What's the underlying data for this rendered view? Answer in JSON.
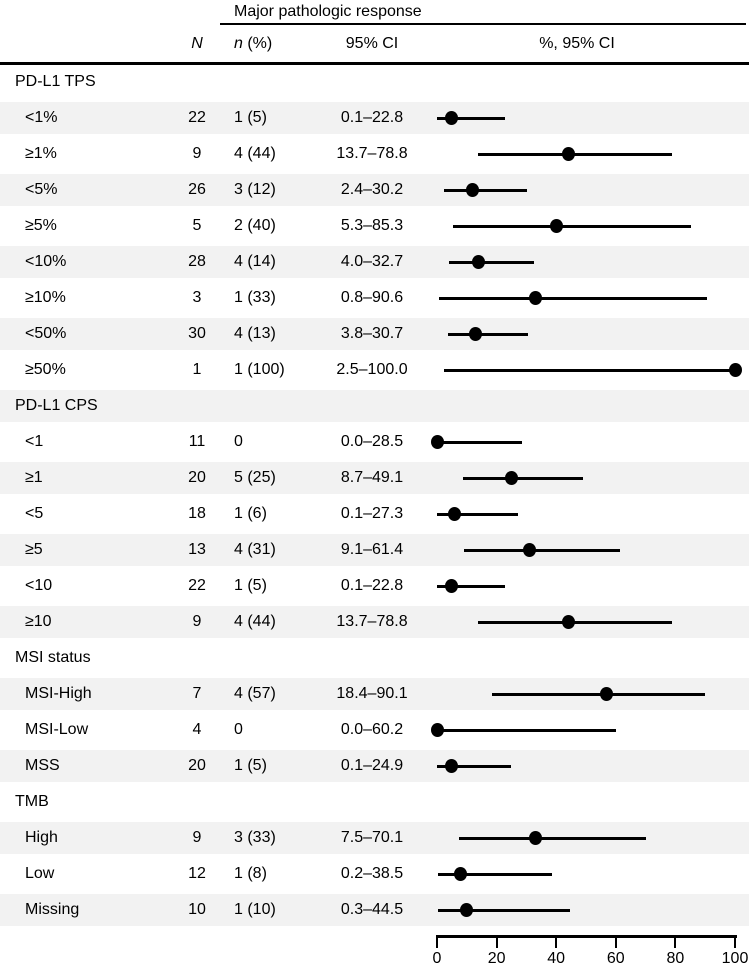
{
  "header": {
    "group": "Major pathologic response",
    "col_n": "N",
    "col_n_pct_italic": "n",
    "col_n_pct_rest": " (%)",
    "col_ci": "95% CI",
    "col_plot": "%, 95% CI"
  },
  "colors": {
    "row_shade": "#f2f2f2",
    "ink": "#000000"
  },
  "chart_data": {
    "type": "scatter",
    "variant": "forest-plot",
    "title": "Major pathologic response",
    "xlabel": "%, 95% CI",
    "xlim": [
      0,
      100
    ],
    "x_ticks": [
      0,
      20,
      40,
      60,
      80,
      100
    ],
    "grid": false,
    "columns": [
      "N",
      "n (%)",
      "95% CI",
      "%, 95% CI"
    ],
    "sections": [
      {
        "label": "PD-L1 TPS",
        "rows": [
          {
            "label": "<1%",
            "N": "22",
            "n_pct": "1 (5)",
            "ci_text": "0.1–22.8",
            "estimate": 5,
            "ci_low": 0.1,
            "ci_high": 22.8
          },
          {
            "label": "≥1%",
            "N": "9",
            "n_pct": "4 (44)",
            "ci_text": "13.7–78.8",
            "estimate": 44,
            "ci_low": 13.7,
            "ci_high": 78.8
          },
          {
            "label": "<5%",
            "N": "26",
            "n_pct": "3 (12)",
            "ci_text": "2.4–30.2",
            "estimate": 12,
            "ci_low": 2.4,
            "ci_high": 30.2
          },
          {
            "label": "≥5%",
            "N": "5",
            "n_pct": "2 (40)",
            "ci_text": "5.3–85.3",
            "estimate": 40,
            "ci_low": 5.3,
            "ci_high": 85.3
          },
          {
            "label": "<10%",
            "N": "28",
            "n_pct": "4 (14)",
            "ci_text": "4.0–32.7",
            "estimate": 14,
            "ci_low": 4.0,
            "ci_high": 32.7
          },
          {
            "label": "≥10%",
            "N": "3",
            "n_pct": "1 (33)",
            "ci_text": "0.8–90.6",
            "estimate": 33,
            "ci_low": 0.8,
            "ci_high": 90.6
          },
          {
            "label": "<50%",
            "N": "30",
            "n_pct": "4 (13)",
            "ci_text": "3.8–30.7",
            "estimate": 13,
            "ci_low": 3.8,
            "ci_high": 30.7
          },
          {
            "label": "≥50%",
            "N": "1",
            "n_pct": "1 (100)",
            "ci_text": "2.5–100.0",
            "estimate": 100,
            "ci_low": 2.5,
            "ci_high": 100.0
          }
        ]
      },
      {
        "label": "PD-L1 CPS",
        "rows": [
          {
            "label": "<1",
            "N": "11",
            "n_pct": "0",
            "ci_text": "0.0–28.5",
            "estimate": 0,
            "ci_low": 0.0,
            "ci_high": 28.5
          },
          {
            "label": "≥1",
            "N": "20",
            "n_pct": "5 (25)",
            "ci_text": "8.7–49.1",
            "estimate": 25,
            "ci_low": 8.7,
            "ci_high": 49.1
          },
          {
            "label": "<5",
            "N": "18",
            "n_pct": "1 (6)",
            "ci_text": "0.1–27.3",
            "estimate": 6,
            "ci_low": 0.1,
            "ci_high": 27.3
          },
          {
            "label": "≥5",
            "N": "13",
            "n_pct": "4 (31)",
            "ci_text": "9.1–61.4",
            "estimate": 31,
            "ci_low": 9.1,
            "ci_high": 61.4
          },
          {
            "label": "<10",
            "N": "22",
            "n_pct": "1 (5)",
            "ci_text": "0.1–22.8",
            "estimate": 5,
            "ci_low": 0.1,
            "ci_high": 22.8
          },
          {
            "label": "≥10",
            "N": "9",
            "n_pct": "4 (44)",
            "ci_text": "13.7–78.8",
            "estimate": 44,
            "ci_low": 13.7,
            "ci_high": 78.8
          }
        ]
      },
      {
        "label": "MSI status",
        "rows": [
          {
            "label": "MSI-High",
            "N": "7",
            "n_pct": "4 (57)",
            "ci_text": "18.4–90.1",
            "estimate": 57,
            "ci_low": 18.4,
            "ci_high": 90.1
          },
          {
            "label": "MSI-Low",
            "N": "4",
            "n_pct": "0",
            "ci_text": "0.0–60.2",
            "estimate": 0,
            "ci_low": 0.0,
            "ci_high": 60.2
          },
          {
            "label": "MSS",
            "N": "20",
            "n_pct": "1 (5)",
            "ci_text": "0.1–24.9",
            "estimate": 5,
            "ci_low": 0.1,
            "ci_high": 24.9
          }
        ]
      },
      {
        "label": "TMB",
        "rows": [
          {
            "label": "High",
            "N": "9",
            "n_pct": "3 (33)",
            "ci_text": "7.5–70.1",
            "estimate": 33,
            "ci_low": 7.5,
            "ci_high": 70.1
          },
          {
            "label": "Low",
            "N": "12",
            "n_pct": "1 (8)",
            "ci_text": "0.2–38.5",
            "estimate": 8,
            "ci_low": 0.2,
            "ci_high": 38.5
          },
          {
            "label": "Missing",
            "N": "10",
            "n_pct": "1 (10)",
            "ci_text": "0.3–44.5",
            "estimate": 10,
            "ci_low": 0.3,
            "ci_high": 44.5
          }
        ]
      }
    ]
  }
}
